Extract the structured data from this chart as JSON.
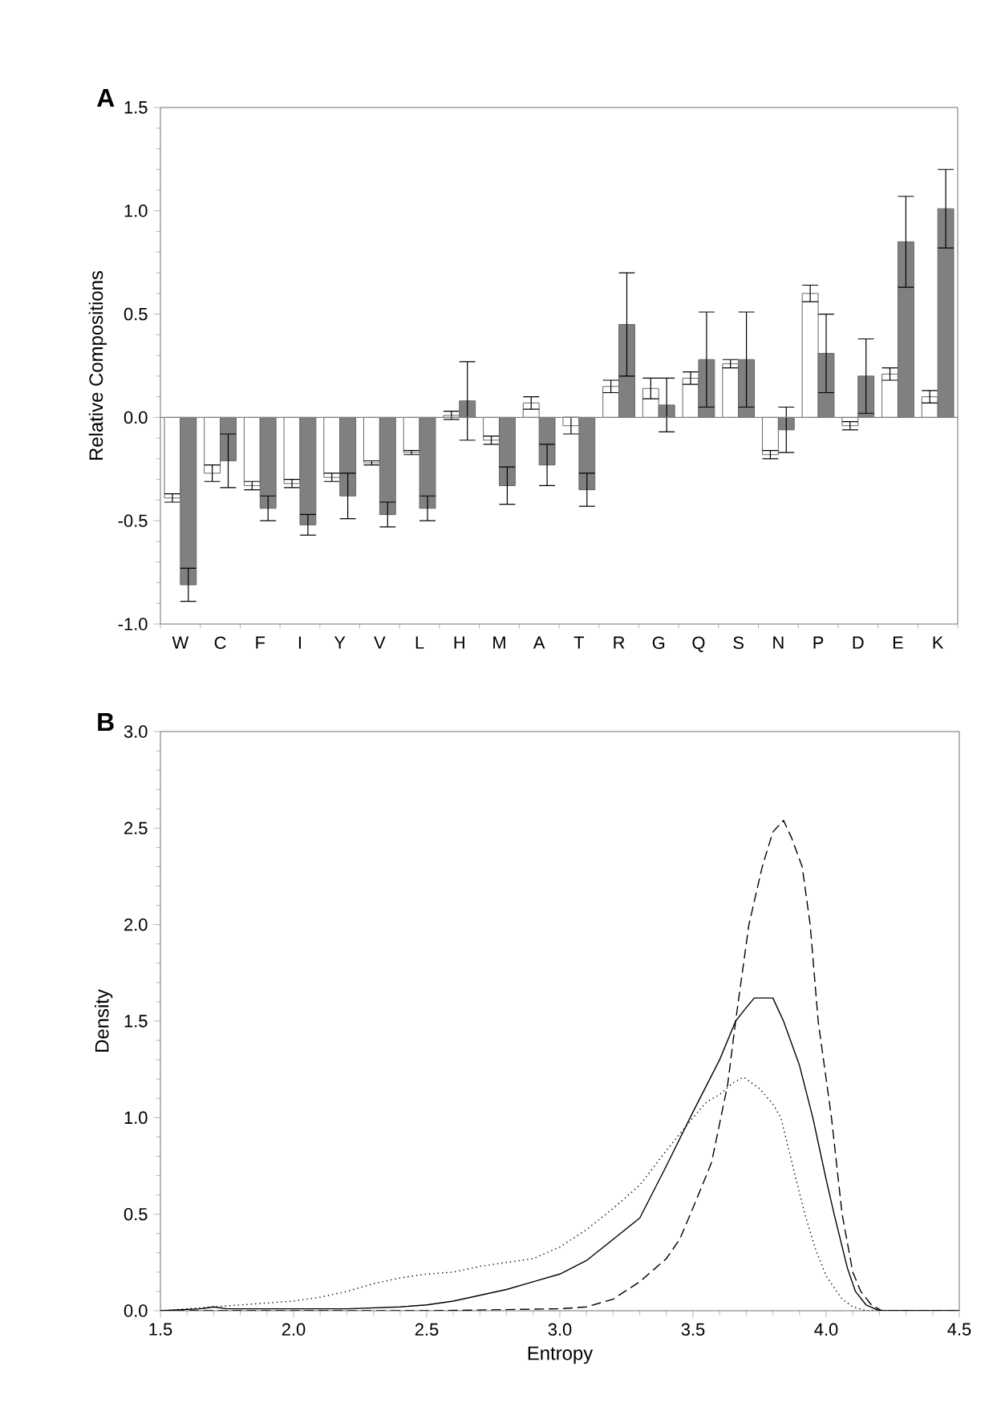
{
  "chart_data": [
    {
      "type": "bar",
      "title": "A",
      "ylabel": "Relative Compositions",
      "categories": [
        "W",
        "C",
        "F",
        "I",
        "Y",
        "V",
        "L",
        "H",
        "M",
        "A",
        "T",
        "R",
        "G",
        "Q",
        "S",
        "N",
        "P",
        "D",
        "E",
        "K"
      ],
      "ylim": [
        -1.0,
        1.5
      ],
      "yticks": [
        {
          "value": -1,
          "label": "-1.0"
        },
        {
          "value": -0.5,
          "label": "-0.5"
        },
        {
          "value": 0,
          "label": "0.0"
        },
        {
          "value": 0.5,
          "label": "0.5"
        },
        {
          "value": 1,
          "label": "1.0"
        },
        {
          "value": 1.5,
          "label": "1.5"
        }
      ],
      "ref_lines": [
        {
          "axis": "y",
          "value": 0,
          "color": "#808080"
        }
      ],
      "series": [
        {
          "color": "#ffffff",
          "values": [
            -0.39,
            -0.27,
            -0.33,
            -0.32,
            -0.29,
            -0.22,
            -0.17,
            0.01,
            -0.11,
            0.07,
            -0.04,
            0.15,
            0.14,
            0.19,
            0.26,
            -0.18,
            0.6,
            -0.04,
            0.21,
            0.1
          ],
          "errors": [
            0.02,
            0.04,
            0.02,
            0.02,
            0.02,
            0.01,
            0.01,
            0.02,
            0.02,
            0.03,
            0.04,
            0.03,
            0.05,
            0.03,
            0.02,
            0.02,
            0.04,
            0.02,
            0.03,
            0.03
          ]
        },
        {
          "color": "#808080",
          "values": [
            -0.81,
            -0.21,
            -0.44,
            -0.52,
            -0.38,
            -0.47,
            -0.44,
            0.08,
            -0.33,
            -0.23,
            -0.35,
            0.45,
            0.06,
            0.28,
            0.28,
            -0.06,
            0.31,
            0.2,
            0.85,
            1.01
          ],
          "errors": [
            0.08,
            0.13,
            0.06,
            0.05,
            0.11,
            0.06,
            0.06,
            0.19,
            0.09,
            0.1,
            0.08,
            0.25,
            0.13,
            0.23,
            0.23,
            0.11,
            0.19,
            0.18,
            0.22,
            0.19
          ]
        }
      ]
    },
    {
      "type": "line",
      "title": "B",
      "xlabel": "Entropy",
      "ylabel": "Density",
      "xlim": [
        1.5,
        4.5
      ],
      "ylim": [
        0,
        3.0
      ],
      "xticks": [
        {
          "value": 1.5,
          "label": "1.5"
        },
        {
          "value": 2,
          "label": "2.0"
        },
        {
          "value": 2.5,
          "label": "2.5"
        },
        {
          "value": 3,
          "label": "3.0"
        },
        {
          "value": 3.5,
          "label": "3.5"
        },
        {
          "value": 4,
          "label": "4.0"
        },
        {
          "value": 4.5,
          "label": "4.5"
        }
      ],
      "yticks": [
        {
          "value": 0,
          "label": "0.0"
        },
        {
          "value": 0.5,
          "label": "0.5"
        },
        {
          "value": 1,
          "label": "1.0"
        },
        {
          "value": 1.5,
          "label": "1.5"
        },
        {
          "value": 2,
          "label": "2.0"
        },
        {
          "value": 2.5,
          "label": "2.5"
        },
        {
          "value": 3,
          "label": "3.0"
        }
      ],
      "series": [
        {
          "color": "#000000",
          "line_style": "solid",
          "x": [
            1.5,
            1.65,
            1.7,
            1.75,
            2.0,
            2.2,
            2.4,
            2.5,
            2.6,
            2.7,
            2.8,
            2.9,
            3.0,
            3.1,
            3.2,
            3.3,
            3.4,
            3.5,
            3.6,
            3.66,
            3.7,
            3.73,
            3.8,
            3.84,
            3.9,
            3.95,
            4.0,
            4.03,
            4.08,
            4.11,
            4.15,
            4.2,
            4.5
          ],
          "values": [
            0,
            0.01,
            0.02,
            0.01,
            0.01,
            0.01,
            0.02,
            0.03,
            0.05,
            0.08,
            0.11,
            0.15,
            0.19,
            0.26,
            0.37,
            0.48,
            0.75,
            1.03,
            1.3,
            1.5,
            1.57,
            1.62,
            1.62,
            1.5,
            1.27,
            1.0,
            0.68,
            0.5,
            0.22,
            0.1,
            0.03,
            0,
            0
          ]
        },
        {
          "color": "#000000",
          "line_style": "dashed",
          "x": [
            1.5,
            2.5,
            3.0,
            3.1,
            3.2,
            3.3,
            3.4,
            3.45,
            3.49,
            3.55,
            3.57,
            3.63,
            3.66,
            3.71,
            3.76,
            3.8,
            3.84,
            3.87,
            3.91,
            3.94,
            3.97,
            4.02,
            4.06,
            4.1,
            4.13,
            4.17,
            4.21,
            4.5
          ],
          "values": [
            0,
            0,
            0.01,
            0.02,
            0.06,
            0.15,
            0.27,
            0.37,
            0.5,
            0.7,
            0.77,
            1.17,
            1.5,
            2.0,
            2.3,
            2.48,
            2.54,
            2.45,
            2.3,
            2.0,
            1.5,
            1.0,
            0.5,
            0.2,
            0.1,
            0.03,
            0,
            0
          ]
        },
        {
          "color": "#000000",
          "line_style": "dotted",
          "x": [
            1.5,
            1.7,
            1.9,
            2.0,
            2.1,
            2.2,
            2.3,
            2.4,
            2.5,
            2.6,
            2.7,
            2.8,
            2.9,
            3.0,
            3.1,
            3.2,
            3.3,
            3.4,
            3.5,
            3.55,
            3.6,
            3.65,
            3.69,
            3.75,
            3.8,
            3.83,
            3.88,
            3.92,
            3.96,
            4.0,
            4.06,
            4.1,
            4.15,
            4.5
          ],
          "values": [
            0,
            0.02,
            0.04,
            0.05,
            0.07,
            0.1,
            0.14,
            0.17,
            0.19,
            0.2,
            0.23,
            0.25,
            0.27,
            0.33,
            0.42,
            0.53,
            0.65,
            0.83,
            1.0,
            1.08,
            1.12,
            1.18,
            1.21,
            1.15,
            1.07,
            1.0,
            0.72,
            0.5,
            0.32,
            0.18,
            0.06,
            0.02,
            0,
            0
          ]
        }
      ]
    }
  ]
}
